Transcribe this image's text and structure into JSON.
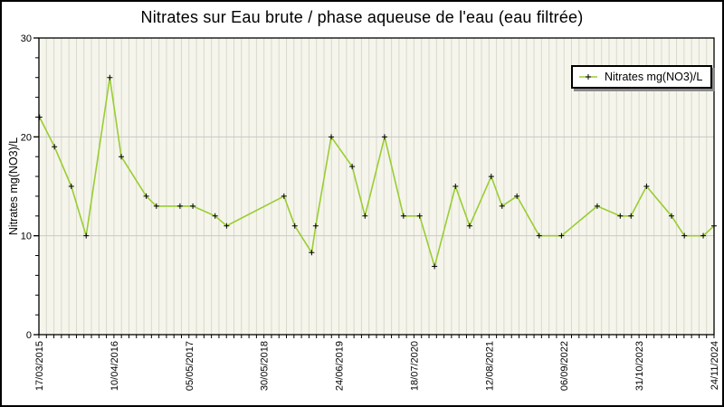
{
  "title": "Nitrates sur Eau brute / phase aqueuse de l'eau (eau filtrée)",
  "legend": {
    "label": "Nitrates mg(NO3)/L",
    "position": "top-right"
  },
  "y_axis": {
    "label": "Nitrates mg(NO3)/L",
    "tick_values": [
      0,
      10,
      20,
      30
    ],
    "tick_labels": [
      "0",
      "10",
      "20",
      "30"
    ],
    "minor_tick_step": 2,
    "range": [
      0,
      30
    ]
  },
  "x_axis": {
    "labels": [
      "17/03/2015",
      "10/04/2016",
      "05/05/2017",
      "30/05/2018",
      "24/06/2019",
      "18/07/2020",
      "12/08/2021",
      "06/09/2022",
      "31/10/2023",
      "24/11/2024"
    ],
    "minor_ticks_total": 91,
    "label_every_n_ticks": 10,
    "labels_rotation_deg": -90
  },
  "colors": {
    "line": "#9acd32",
    "marker": "#000000",
    "plot_background": "#f5f5ec",
    "stripe": "#d8d8cd",
    "gridline": "#c8c8c8",
    "frame": "#000000",
    "tick": "#000000",
    "legend_shadow": "#8a8a8a"
  },
  "chart_data": {
    "type": "line",
    "title": "Nitrates sur Eau brute / phase aqueuse de l'eau (eau filtrée)",
    "xlabel": "",
    "ylabel": "Nitrates mg(NO3)/L",
    "ylim": [
      0,
      30
    ],
    "grid": "vertical stripes at every minor tick, horizontal lines at 10 and 20",
    "legend_position": "top-right",
    "series_name": "Nitrates mg(NO3)/L",
    "marker_style": "plus",
    "x_tick_labels": [
      "17/03/2015",
      "10/04/2016",
      "05/05/2017",
      "30/05/2018",
      "24/06/2019",
      "18/07/2020",
      "12/08/2021",
      "06/09/2022",
      "31/10/2023",
      "24/11/2024"
    ],
    "note": "x positions of samples are irregular in time; date_approx values between labeled ticks are estimated from plot position",
    "points": [
      {
        "x_frac": 0.001,
        "date_approx": "17/03/2015",
        "value": 22
      },
      {
        "x_frac": 0.023,
        "date_approx": "05/06/2015",
        "value": 19
      },
      {
        "x_frac": 0.048,
        "date_approx": "03/09/2015",
        "value": 15
      },
      {
        "x_frac": 0.07,
        "date_approx": "18/11/2015",
        "value": 10
      },
      {
        "x_frac": 0.105,
        "date_approx": "20/03/2016",
        "value": 26
      },
      {
        "x_frac": 0.122,
        "date_approx": "21/05/2016",
        "value": 18
      },
      {
        "x_frac": 0.159,
        "date_approx": "30/09/2016",
        "value": 14
      },
      {
        "x_frac": 0.174,
        "date_approx": "21/11/2016",
        "value": 13
      },
      {
        "x_frac": 0.209,
        "date_approx": "24/03/2017",
        "value": 13
      },
      {
        "x_frac": 0.228,
        "date_approx": "29/05/2017",
        "value": 13
      },
      {
        "x_frac": 0.261,
        "date_approx": "25/09/2017",
        "value": 12
      },
      {
        "x_frac": 0.278,
        "date_approx": "21/11/2017",
        "value": 11
      },
      {
        "x_frac": 0.363,
        "date_approx": "19/09/2018",
        "value": 14
      },
      {
        "x_frac": 0.379,
        "date_approx": "15/11/2018",
        "value": 11
      },
      {
        "x_frac": 0.404,
        "date_approx": "08/02/2019",
        "value": 8.3
      },
      {
        "x_frac": 0.41,
        "date_approx": "04/03/2019",
        "value": 11
      },
      {
        "x_frac": 0.433,
        "date_approx": "24/05/2019",
        "value": 20
      },
      {
        "x_frac": 0.464,
        "date_approx": "09/09/2019",
        "value": 17
      },
      {
        "x_frac": 0.483,
        "date_approx": "15/11/2019",
        "value": 12
      },
      {
        "x_frac": 0.512,
        "date_approx": "27/02/2020",
        "value": 20
      },
      {
        "x_frac": 0.54,
        "date_approx": "05/06/2020",
        "value": 12
      },
      {
        "x_frac": 0.564,
        "date_approx": "29/08/2020",
        "value": 12
      },
      {
        "x_frac": 0.586,
        "date_approx": "13/11/2020",
        "value": 6.9
      },
      {
        "x_frac": 0.617,
        "date_approx": "02/03/2021",
        "value": 15
      },
      {
        "x_frac": 0.638,
        "date_approx": "16/05/2021",
        "value": 11
      },
      {
        "x_frac": 0.67,
        "date_approx": "07/09/2021",
        "value": 16
      },
      {
        "x_frac": 0.686,
        "date_approx": "03/11/2021",
        "value": 13
      },
      {
        "x_frac": 0.708,
        "date_approx": "17/01/2022",
        "value": 14
      },
      {
        "x_frac": 0.741,
        "date_approx": "16/05/2022",
        "value": 10
      },
      {
        "x_frac": 0.774,
        "date_approx": "07/09/2022",
        "value": 10
      },
      {
        "x_frac": 0.827,
        "date_approx": "16/03/2023",
        "value": 13
      },
      {
        "x_frac": 0.861,
        "date_approx": "12/07/2023",
        "value": 12
      },
      {
        "x_frac": 0.877,
        "date_approx": "07/09/2023",
        "value": 12
      },
      {
        "x_frac": 0.9,
        "date_approx": "26/11/2023",
        "value": 15
      },
      {
        "x_frac": 0.937,
        "date_approx": "07/04/2024",
        "value": 12
      },
      {
        "x_frac": 0.956,
        "date_approx": "12/06/2024",
        "value": 10
      },
      {
        "x_frac": 0.984,
        "date_approx": "19/09/2024",
        "value": 10
      },
      {
        "x_frac": 1.0,
        "date_approx": "24/11/2024",
        "value": 11
      }
    ]
  }
}
